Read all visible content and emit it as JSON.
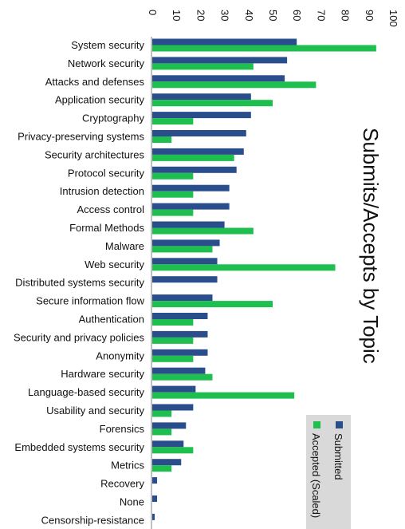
{
  "chart_data": {
    "type": "bar",
    "orientation": "horizontal",
    "title": "Submits/Accepts by Topic",
    "xlim": [
      0,
      100
    ],
    "ticks": [
      0,
      10,
      20,
      30,
      40,
      50,
      60,
      70,
      80,
      90,
      100
    ],
    "grid": false,
    "legend_position": "bottom-right",
    "categories": [
      "System security",
      "Network security",
      "Attacks and defenses",
      "Application security",
      "Cryptography",
      "Privacy-preserving systems",
      "Security architectures",
      "Protocol security",
      "Intrusion detection",
      "Access control",
      "Formal Methods",
      "Malware",
      "Web security",
      "Distributed systems security",
      "Secure information flow",
      "Authentication",
      "Security and privacy policies",
      "Anonymity",
      "Hardware security",
      "Language-based security",
      "Usability and security",
      "Forensics",
      "Embedded systems security",
      "Metrics",
      "Recovery",
      "None",
      "Censorship-resistance"
    ],
    "series": [
      {
        "name": "Submitted",
        "color": "#2a4e8c",
        "values": [
          60,
          56,
          55,
          41,
          41,
          39,
          38,
          35,
          32,
          32,
          30,
          28,
          27,
          27,
          25,
          23,
          23,
          23,
          22,
          18,
          17,
          14,
          13,
          12,
          2,
          2,
          1
        ]
      },
      {
        "name": "Accepted (Scaled)",
        "color": "#1fbf4f",
        "values": [
          93,
          42,
          68,
          50,
          17,
          8,
          34,
          17,
          17,
          17,
          42,
          25,
          76,
          0,
          50,
          17,
          17,
          17,
          25,
          59,
          8,
          8,
          17,
          8,
          0,
          0,
          0
        ]
      }
    ]
  }
}
